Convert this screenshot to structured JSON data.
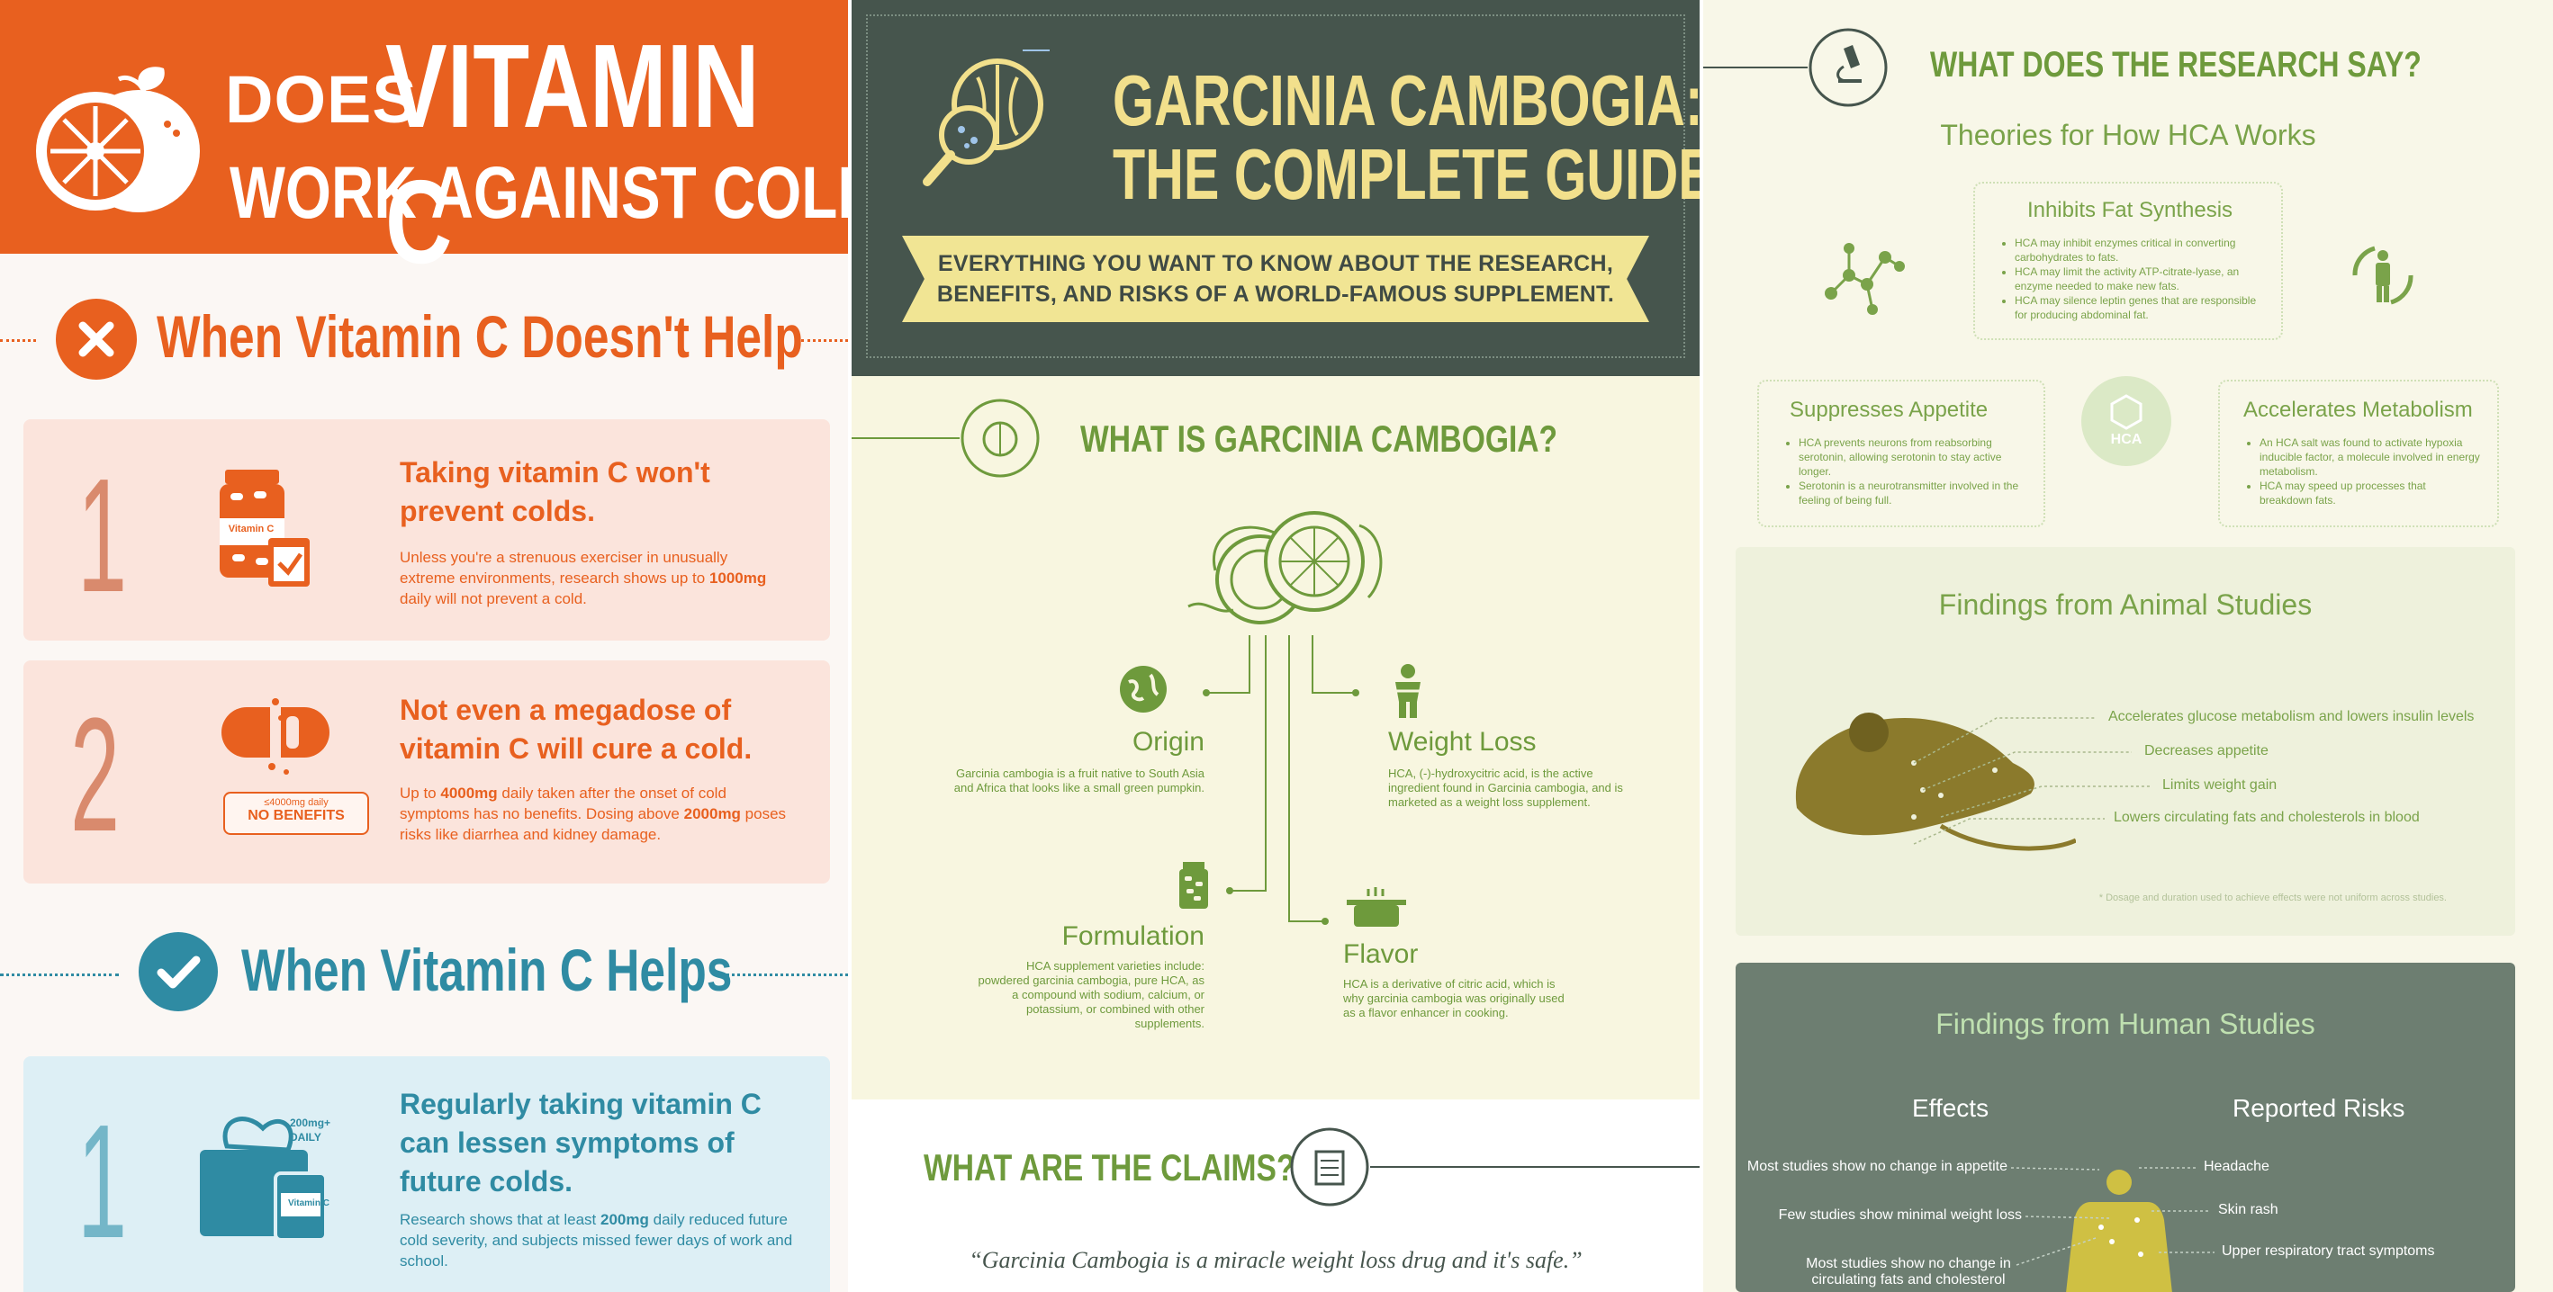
{
  "vitamin": {
    "hero": {
      "line1": "DOES",
      "line2": "VITAMIN C",
      "line3": "WORK AGAINST COLDS?"
    },
    "doesnt_help": {
      "title": "When Vitamin C Doesn't Help",
      "items": [
        {
          "number": "1",
          "title": "Taking vitamin C won't prevent colds.",
          "body_a": "Unless you're a strenuous exerciser in unusually extreme environments, research shows up to ",
          "body_bold": "1000mg",
          "body_b": " daily will not prevent a cold.",
          "icon_label": "Vitamin C"
        },
        {
          "number": "2",
          "title": "Not even a megadose of vitamin C will cure a cold.",
          "body_a": "Up to ",
          "body_bold": "4000mg",
          "body_b": " daily taken after the onset of cold symptoms has no benefits. Dosing above ",
          "body_bold2": "2000mg",
          "body_c": " poses risks like diarrhea and kidney damage.",
          "tag_small": "≤4000mg daily",
          "tag_big": "NO BENEFITS"
        }
      ]
    },
    "helps": {
      "title": "When Vitamin C Helps",
      "items": [
        {
          "number": "1",
          "title": "Regularly taking vitamin C can lessen symptoms of future colds.",
          "body_a": "Research shows that at least ",
          "body_bold": "200mg",
          "body_b": " daily reduced future cold severity, and subjects missed fewer days of work and school.",
          "dose_label_1": "200mg+",
          "dose_label_2": "DAILY",
          "icon_label": "Vitamin C"
        }
      ]
    },
    "colors": {
      "orange": "#e8601f",
      "teal": "#2f8ba3"
    }
  },
  "garcinia": {
    "hero": {
      "title1": "GARCINIA CAMBOGIA:",
      "title2": "THE COMPLETE GUIDE",
      "banner1": "EVERYTHING YOU WANT TO KNOW ABOUT THE RESEARCH,",
      "banner2": "BENEFITS, AND RISKS OF A WORLD-FAMOUS SUPPLEMENT."
    },
    "what_is": {
      "title": "WHAT IS GARCINIA CAMBOGIA?",
      "origin": {
        "label": "Origin",
        "text": "Garcinia cambogia is a fruit native to South Asia and Africa that looks like a small green pumpkin."
      },
      "weight_loss": {
        "label": "Weight Loss",
        "text": "HCA, (-)-hydroxycitric acid, is the active ingredient found in Garcinia cambogia, and is marketed as a weight loss supplement."
      },
      "formulation": {
        "label": "Formulation",
        "text": "HCA supplement varieties include: powdered garcinia cambogia, pure HCA, as a compound with sodium, calcium, or potassium, or combined with other supplements."
      },
      "flavor": {
        "label": "Flavor",
        "text": "HCA is a derivative of citric acid, which is why garcinia cambogia was originally used as a flavor enhancer in cooking."
      }
    },
    "claims": {
      "title": "WHAT ARE THE CLAIMS?",
      "quote": "“Garcinia Cambogia is a miracle weight loss drug and it's safe.”"
    },
    "colors": {
      "dark": "#46554d",
      "green": "#6e9a3c",
      "yellow": "#f2e08c"
    }
  },
  "research": {
    "title": "WHAT DOES THE RESEARCH SAY?",
    "theories_title": "Theories for How HCA Works",
    "center_label": "HCA",
    "fat": {
      "title": "Inhibits Fat Synthesis",
      "bullets": [
        "HCA may inhibit enzymes critical in converting carbohydrates to fats.",
        "HCA may limit the activity ATP-citrate-lyase, an enzyme needed to make new fats.",
        "HCA may silence leptin genes that are responsible for producing abdominal fat."
      ]
    },
    "appetite": {
      "title": "Suppresses Appetite",
      "bullets": [
        "HCA prevents neurons from reabsorbing serotonin, allowing serotonin to stay active longer.",
        "Serotonin is a neurotransmitter involved in the feeling of being full."
      ]
    },
    "metabolism": {
      "title": "Accelerates Metabolism",
      "bullets": [
        "An HCA salt was found to activate hypoxia inducible factor, a molecule involved in energy metabolism.",
        "HCA may speed up processes that breakdown fats."
      ]
    },
    "animal": {
      "title": "Findings from Animal Studies",
      "findings": [
        "Accelerates glucose metabolism and lowers insulin levels",
        "Decreases appetite",
        "Limits weight gain",
        "Lowers circulating fats and cholesterols in blood"
      ],
      "footnote": "* Dosage and duration used to achieve effects were not uniform across studies."
    },
    "human": {
      "title": "Findings from Human Studies",
      "effects_title": "Effects",
      "risks_title": "Reported Risks",
      "effects": [
        "Most studies show no change in appetite",
        "Few studies show minimal weight loss",
        "Most studies show no change in circulating fats and cholesterol"
      ],
      "risks": [
        "Headache",
        "Skin rash",
        "Upper respiratory tract symptoms"
      ]
    }
  }
}
